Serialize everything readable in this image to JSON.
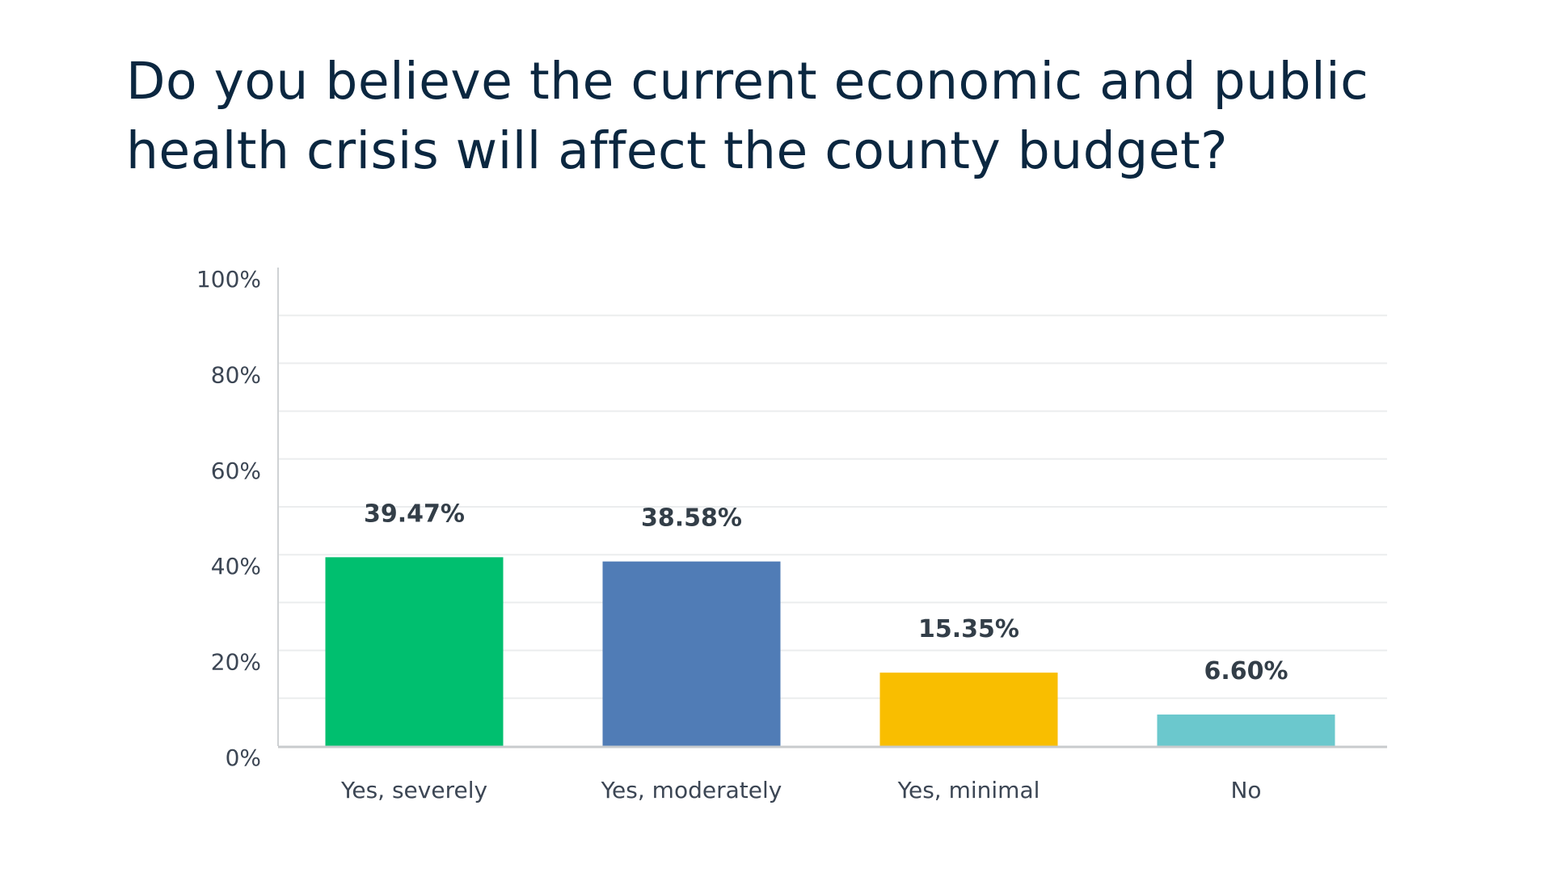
{
  "chart_data": {
    "type": "bar",
    "title": "Do you believe the current economic and public health crisis will affect the county budget?",
    "xlabel": "",
    "ylabel": "",
    "categories": [
      "Yes, severely",
      "Yes, moderately",
      "Yes, minimal",
      "No"
    ],
    "values": [
      39.47,
      38.58,
      15.35,
      6.6
    ],
    "value_labels": [
      "39.47%",
      "38.58%",
      "15.35%",
      "6.60%"
    ],
    "colors": [
      "#00bf6f",
      "#507cb6",
      "#f9be00",
      "#6bc8cd"
    ],
    "ylim": [
      0,
      100
    ],
    "yticks": [
      0,
      20,
      40,
      60,
      80,
      100
    ],
    "ytick_labels": [
      "0%",
      "20%",
      "40%",
      "60%",
      "80%",
      "100%"
    ],
    "grid": true,
    "grid_step": 10,
    "legend": "none"
  }
}
